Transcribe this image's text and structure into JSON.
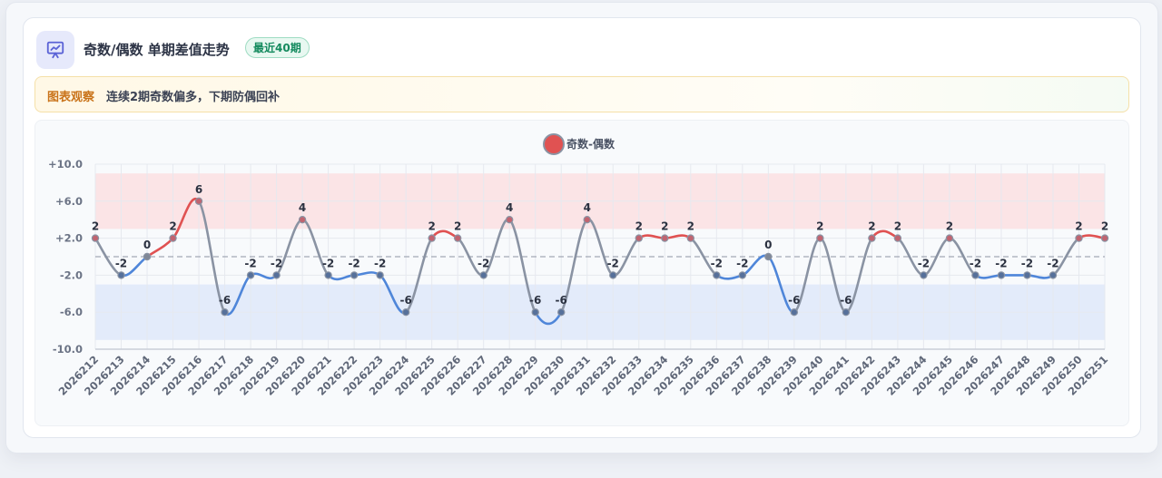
{
  "header": {
    "title": "奇数/偶数 单期差值走势",
    "badge": "最近40期",
    "icon": "presentation-chart-icon"
  },
  "insight": {
    "label": "图表观察",
    "text": "连续2期奇数偏多，下期防偶回补"
  },
  "colors": {
    "positive": "#e05252",
    "negative": "#4f86d9",
    "neutral": "#8a93a3",
    "accent": "#5b63d6"
  },
  "chart_data": {
    "type": "line",
    "legend": {
      "label": "奇数-偶数",
      "placement": "top-center"
    },
    "categories": [
      "2026212",
      "2026213",
      "2026214",
      "2026215",
      "2026216",
      "2026217",
      "2026218",
      "2026219",
      "2026220",
      "2026221",
      "2026222",
      "2026223",
      "2026224",
      "2026225",
      "2026226",
      "2026227",
      "2026228",
      "2026229",
      "2026230",
      "2026231",
      "2026232",
      "2026233",
      "2026234",
      "2026235",
      "2026236",
      "2026237",
      "2026238",
      "2026239",
      "2026240",
      "2026241",
      "2026242",
      "2026243",
      "2026244",
      "2026245",
      "2026246",
      "2026247",
      "2026248",
      "2026249",
      "2026250",
      "2026251"
    ],
    "series": [
      {
        "name": "奇数-偶数",
        "values": [
          2,
          -2,
          0,
          2,
          6,
          -6,
          -2,
          -2,
          4,
          -2,
          -2,
          -2,
          -6,
          2,
          2,
          -2,
          4,
          -6,
          -6,
          4,
          -2,
          2,
          2,
          2,
          -2,
          -2,
          0,
          -6,
          2,
          -6,
          2,
          2,
          -2,
          2,
          -2,
          -2,
          -2,
          -2,
          2,
          2
        ]
      }
    ],
    "ylim": [
      -10,
      10
    ],
    "yticks": [
      "+10.0",
      "+6.0",
      "+2.0",
      "-2.0",
      "-6.0",
      "-10.0"
    ],
    "ytick_values": [
      10,
      6,
      2,
      -2,
      -6,
      -10
    ],
    "bands": [
      {
        "from": 3,
        "to": 9,
        "color": "#fbe4e6"
      },
      {
        "from": -9,
        "to": -3,
        "color": "#e3ebfa"
      }
    ],
    "zero_line": "dashed",
    "grid": true
  }
}
